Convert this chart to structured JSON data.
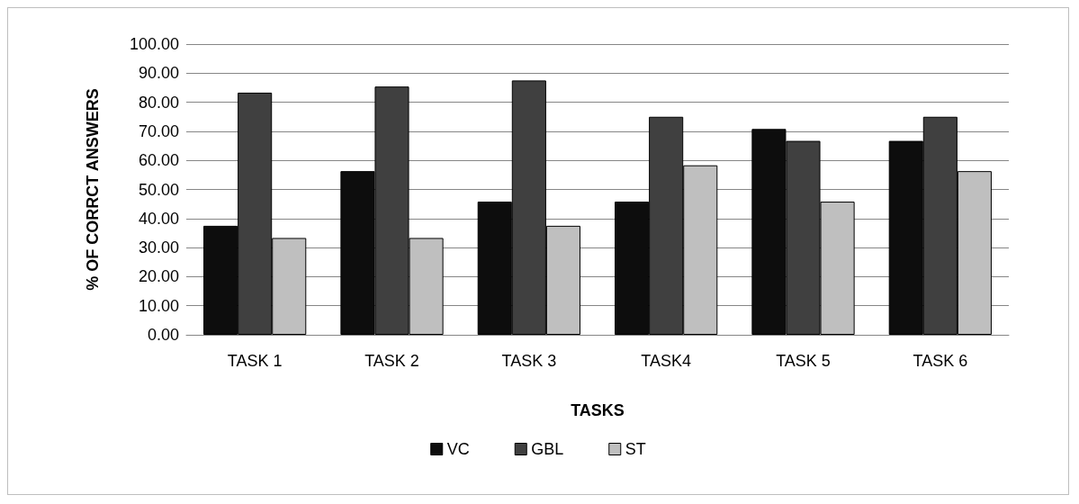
{
  "chart_data": {
    "type": "bar",
    "xlabel": "TASKS",
    "ylabel": "% OF CORRCT ANSWERS",
    "categories": [
      "TASK 1",
      "TASK 2",
      "TASK 3",
      "TASK4",
      "TASK 5",
      "TASK 6"
    ],
    "series": [
      {
        "name": "VC",
        "color": "#0d0d0d",
        "values": [
          37.5,
          56.3,
          45.8,
          45.8,
          70.8,
          66.7
        ]
      },
      {
        "name": "GBL",
        "color": "#404040",
        "values": [
          83.3,
          85.4,
          87.5,
          75,
          66.7,
          75
        ]
      },
      {
        "name": "ST",
        "color": "#bfbfbf",
        "values": [
          33.3,
          33.3,
          37.5,
          58.3,
          45.8,
          56.3
        ]
      }
    ],
    "ylim": [
      0,
      100
    ],
    "yticks": [
      {
        "value": 0,
        "label": "0.00"
      },
      {
        "value": 10,
        "label": "10.00"
      },
      {
        "value": 20,
        "label": "20.00"
      },
      {
        "value": 30,
        "label": "30.00"
      },
      {
        "value": 40,
        "label": "40.00"
      },
      {
        "value": 50,
        "label": "50.00"
      },
      {
        "value": 60,
        "label": "60.00"
      },
      {
        "value": 70,
        "label": "70.00"
      },
      {
        "value": 80,
        "label": "80.00"
      },
      {
        "value": 90,
        "label": "90.00"
      },
      {
        "value": 100,
        "label": "100.00"
      }
    ],
    "grid": "y",
    "legend": "bottom"
  }
}
